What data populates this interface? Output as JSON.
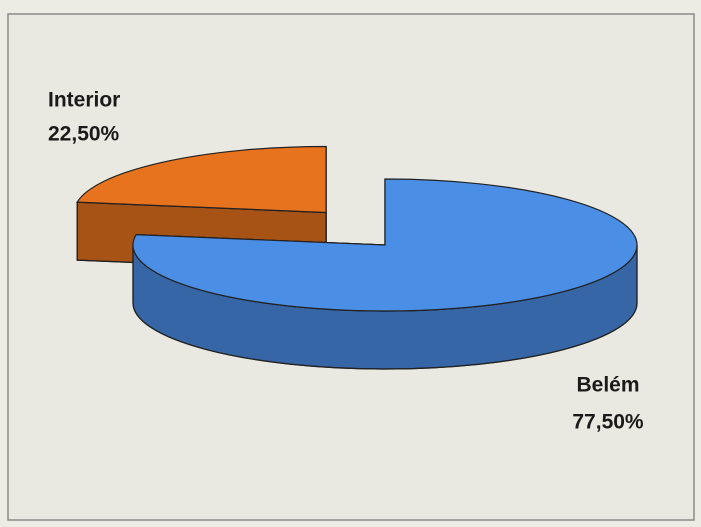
{
  "chart_data": {
    "type": "pie",
    "categories": [
      "Interior",
      "Belém"
    ],
    "values": [
      22.5,
      77.5
    ],
    "value_labels": [
      "22,50%",
      "77,50%"
    ],
    "colors": [
      "#e8731e",
      "#4b8ee6"
    ]
  }
}
